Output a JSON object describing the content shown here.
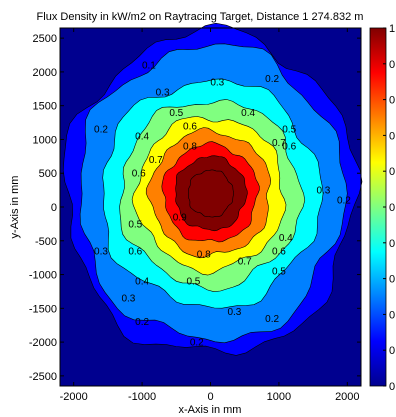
{
  "chart_data": {
    "type": "heatmap",
    "title": "Flux Density in kW/m2 on Raytracing Target, Distance 1 274.832 m",
    "xlabel": "x-Axis in mm",
    "ylabel": "y-Axis in mm",
    "xlim": [
      -2200,
      2200
    ],
    "ylim": [
      -2650,
      2650
    ],
    "xticks": [
      -2000,
      -1000,
      0,
      1000,
      2000
    ],
    "yticks": [
      2500,
      2000,
      1500,
      1000,
      500,
      0,
      -500,
      -1000,
      -1500,
      -2000,
      -2500
    ],
    "colorbar": {
      "ticks": [
        "1",
        "0.",
        "0.",
        "0.",
        "0.",
        "0.",
        "0.",
        "0.",
        "0.",
        "0.",
        "0"
      ],
      "range": [
        0,
        1
      ],
      "colors": [
        "#00008f",
        "#0000ff",
        "#0080ff",
        "#00ffff",
        "#80ff80",
        "#ffff00",
        "#ff8000",
        "#ff0000",
        "#800000"
      ]
    },
    "contour_levels": [
      0.1,
      0.2,
      0.3,
      0.4,
      0.5,
      0.6,
      0.7,
      0.8,
      0.9
    ],
    "peak_center": [
      0,
      200
    ],
    "contour_labels": [
      {
        "text": "0.1",
        "x": -900,
        "y": 2050
      },
      {
        "text": "0.2",
        "x": -1600,
        "y": 1100
      },
      {
        "text": "0.3",
        "x": -700,
        "y": 1650
      },
      {
        "text": "0.3",
        "x": 100,
        "y": 1800
      },
      {
        "text": "0.2",
        "x": 900,
        "y": 1850
      },
      {
        "text": "0.3",
        "x": -1600,
        "y": -700
      },
      {
        "text": "0.4",
        "x": -1000,
        "y": 1000
      },
      {
        "text": "0.5",
        "x": -500,
        "y": 1350
      },
      {
        "text": "0.6",
        "x": -300,
        "y": 1150
      },
      {
        "text": "0.4",
        "x": 550,
        "y": 1350
      },
      {
        "text": "0.6",
        "x": 1150,
        "y": 850
      },
      {
        "text": "0.7",
        "x": 1000,
        "y": 900
      },
      {
        "text": "0.5",
        "x": 1150,
        "y": 1100
      },
      {
        "text": "0.6",
        "x": -1050,
        "y": 450
      },
      {
        "text": "0.7",
        "x": -800,
        "y": 650
      },
      {
        "text": "0.8",
        "x": -300,
        "y": 850
      },
      {
        "text": "0.9",
        "x": -450,
        "y": -200
      },
      {
        "text": "0.8",
        "x": -100,
        "y": -750
      },
      {
        "text": "0.7",
        "x": 500,
        "y": -850
      },
      {
        "text": "0.6",
        "x": -1100,
        "y": -700
      },
      {
        "text": "0.6",
        "x": 1000,
        "y": -700
      },
      {
        "text": "0.5",
        "x": -1100,
        "y": -300
      },
      {
        "text": "0.4",
        "x": -1000,
        "y": -1150
      },
      {
        "text": "0.4",
        "x": 1100,
        "y": -500
      },
      {
        "text": "0.3",
        "x": -1200,
        "y": -1400
      },
      {
        "text": "0.2",
        "x": -1000,
        "y": -1750
      },
      {
        "text": "0.5",
        "x": -250,
        "y": -1150
      },
      {
        "text": "0.5",
        "x": 1000,
        "y": -1000
      },
      {
        "text": "0.3",
        "x": 350,
        "y": -1600
      },
      {
        "text": "0.2",
        "x": 900,
        "y": -1700
      },
      {
        "text": "0.2",
        "x": -200,
        "y": -2050
      },
      {
        "text": "0.3",
        "x": 1650,
        "y": 200
      },
      {
        "text": "0.2",
        "x": 1950,
        "y": 50
      }
    ]
  }
}
